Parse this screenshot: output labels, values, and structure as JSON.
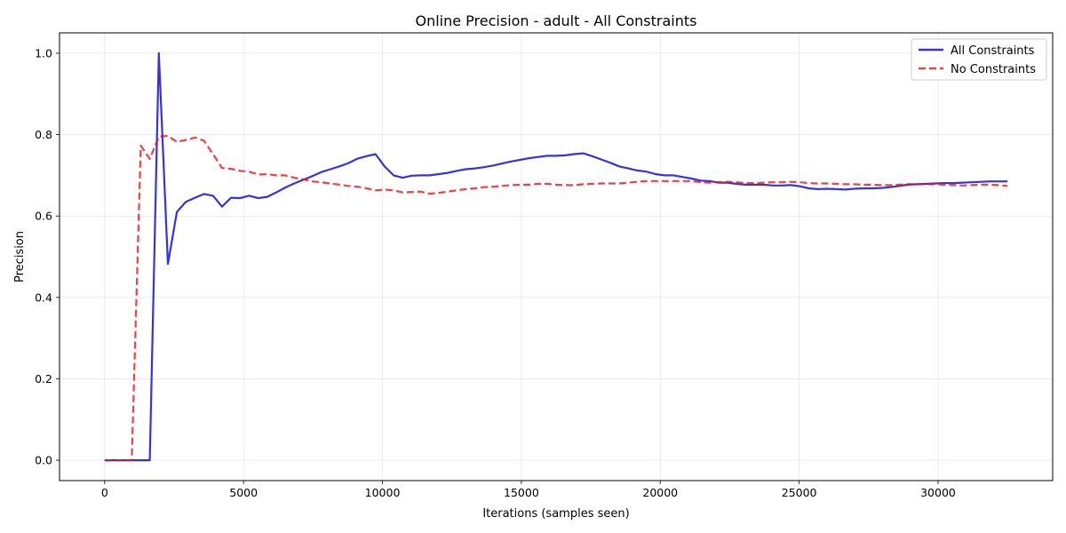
{
  "chart_data": {
    "type": "line",
    "title": "Online Precision - adult - All Constraints",
    "xlabel": "Iterations (samples seen)",
    "ylabel": "Precision",
    "xlim": [
      -1625,
      34125
    ],
    "ylim": [
      -0.05,
      1.05
    ],
    "xticks": [
      0,
      5000,
      10000,
      15000,
      20000,
      25000,
      30000
    ],
    "yticks": [
      0.0,
      0.2,
      0.4,
      0.6,
      0.8,
      1.0
    ],
    "xtick_labels": [
      "0",
      "5000",
      "10000",
      "15000",
      "20000",
      "25000",
      "30000"
    ],
    "ytick_labels": [
      "0.0",
      "0.2",
      "0.4",
      "0.6",
      "0.8",
      "1.0"
    ],
    "grid": true,
    "legend_position": "top-right",
    "series": [
      {
        "name": "All Constraints",
        "color": "#0000dd",
        "style": "solid",
        "x": [
          0,
          325,
          650,
          975,
          1300,
          1625,
          1950,
          2275,
          2600,
          2925,
          3250,
          3575,
          3900,
          4225,
          4550,
          4875,
          5200,
          5525,
          5850,
          6175,
          6500,
          6825,
          7150,
          7475,
          7800,
          8125,
          8450,
          8775,
          9100,
          9425,
          9750,
          10075,
          10400,
          10725,
          11050,
          11375,
          11700,
          12025,
          12350,
          12675,
          13000,
          13325,
          13650,
          13975,
          14300,
          14625,
          14950,
          15275,
          15600,
          15925,
          16250,
          16575,
          16900,
          17225,
          17550,
          17875,
          18200,
          18525,
          18850,
          19175,
          19500,
          19825,
          20150,
          20475,
          20800,
          21125,
          21450,
          21775,
          22100,
          22425,
          22750,
          23075,
          23400,
          23725,
          24050,
          24375,
          24700,
          25025,
          25350,
          25675,
          26000,
          26325,
          26650,
          26975,
          27300,
          27625,
          27950,
          28275,
          28600,
          28925,
          29250,
          29575,
          29900,
          30225,
          30550,
          30875,
          31200,
          31525,
          31850,
          32175,
          32500
        ],
        "y": [
          0.0,
          0.0,
          0.0,
          0.0,
          0.0,
          0.0,
          1.0,
          0.482,
          0.61,
          0.635,
          0.645,
          0.654,
          0.65,
          0.623,
          0.645,
          0.644,
          0.65,
          0.644,
          0.647,
          0.658,
          0.67,
          0.68,
          0.689,
          0.698,
          0.708,
          0.715,
          0.722,
          0.73,
          0.741,
          0.747,
          0.752,
          0.722,
          0.7,
          0.694,
          0.699,
          0.7,
          0.7,
          0.703,
          0.706,
          0.711,
          0.715,
          0.717,
          0.72,
          0.724,
          0.729,
          0.734,
          0.738,
          0.742,
          0.745,
          0.748,
          0.748,
          0.749,
          0.752,
          0.754,
          0.747,
          0.739,
          0.731,
          0.722,
          0.717,
          0.712,
          0.709,
          0.703,
          0.7,
          0.7,
          0.696,
          0.692,
          0.687,
          0.686,
          0.682,
          0.682,
          0.679,
          0.677,
          0.677,
          0.677,
          0.675,
          0.675,
          0.676,
          0.673,
          0.668,
          0.666,
          0.667,
          0.666,
          0.665,
          0.667,
          0.668,
          0.668,
          0.669,
          0.671,
          0.674,
          0.677,
          0.678,
          0.679,
          0.68,
          0.681,
          0.681,
          0.682,
          0.683,
          0.684,
          0.685,
          0.685,
          0.685
        ]
      },
      {
        "name": "No Constraints",
        "color": "#ee1111",
        "style": "dashed",
        "x": [
          0,
          325,
          650,
          975,
          1300,
          1625,
          1950,
          2275,
          2600,
          2925,
          3250,
          3575,
          3900,
          4225,
          4550,
          4875,
          5200,
          5525,
          5850,
          6175,
          6500,
          6825,
          7150,
          7475,
          7800,
          8125,
          8450,
          8775,
          9100,
          9425,
          9750,
          10075,
          10400,
          10725,
          11050,
          11375,
          11700,
          12025,
          12350,
          12675,
          13000,
          13325,
          13650,
          13975,
          14300,
          14625,
          14950,
          15275,
          15600,
          15925,
          16250,
          16575,
          16900,
          17225,
          17550,
          17875,
          18200,
          18525,
          18850,
          19175,
          19500,
          19825,
          20150,
          20475,
          20800,
          21125,
          21450,
          21775,
          22100,
          22425,
          22750,
          23075,
          23400,
          23725,
          24050,
          24375,
          24700,
          25025,
          25350,
          25675,
          26000,
          26325,
          26650,
          26975,
          27300,
          27625,
          27950,
          28275,
          28600,
          28925,
          29250,
          29575,
          29900,
          30225,
          30550,
          30875,
          31200,
          31525,
          31850,
          32175,
          32500
        ],
        "y": [
          0.0,
          0.0,
          0.0,
          0.0,
          0.773,
          0.74,
          0.795,
          0.797,
          0.782,
          0.787,
          0.793,
          0.785,
          0.752,
          0.718,
          0.716,
          0.711,
          0.709,
          0.702,
          0.703,
          0.7,
          0.7,
          0.694,
          0.69,
          0.685,
          0.683,
          0.68,
          0.677,
          0.674,
          0.672,
          0.668,
          0.663,
          0.665,
          0.663,
          0.658,
          0.659,
          0.66,
          0.655,
          0.657,
          0.66,
          0.663,
          0.666,
          0.668,
          0.671,
          0.672,
          0.674,
          0.676,
          0.677,
          0.677,
          0.679,
          0.679,
          0.677,
          0.676,
          0.676,
          0.678,
          0.679,
          0.68,
          0.68,
          0.68,
          0.682,
          0.684,
          0.686,
          0.686,
          0.686,
          0.686,
          0.686,
          0.686,
          0.683,
          0.682,
          0.683,
          0.684,
          0.683,
          0.681,
          0.681,
          0.682,
          0.683,
          0.683,
          0.684,
          0.683,
          0.681,
          0.68,
          0.68,
          0.679,
          0.678,
          0.678,
          0.677,
          0.677,
          0.676,
          0.676,
          0.677,
          0.678,
          0.678,
          0.678,
          0.678,
          0.677,
          0.676,
          0.675,
          0.676,
          0.677,
          0.677,
          0.676,
          0.674
        ]
      }
    ]
  }
}
